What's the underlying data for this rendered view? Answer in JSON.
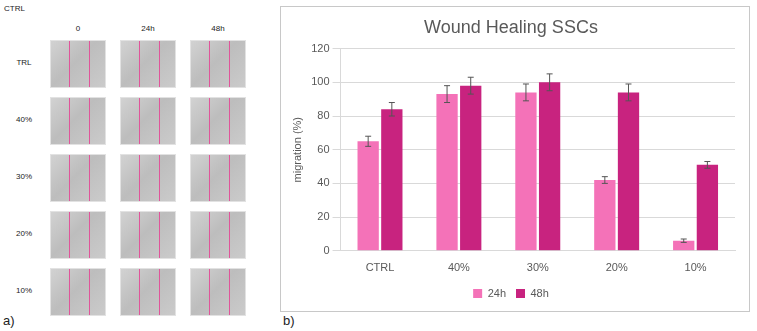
{
  "panel_a": {
    "label": "a)",
    "header": "CTRL",
    "columns": [
      "0",
      "24h",
      "48h"
    ],
    "rows": [
      "TRL",
      "40%",
      "30%",
      "20%",
      "10%"
    ]
  },
  "chart_data": {
    "type": "bar",
    "label": "b)",
    "title": "Wound Healing SSCs",
    "y_label": "migration (%)",
    "categories": [
      "CTRL",
      "40%",
      "30%",
      "20%",
      "10%"
    ],
    "series": [
      {
        "name": "24h",
        "color": "#f472b8",
        "values": [
          65,
          93,
          94,
          42,
          6
        ],
        "errors": [
          3,
          5,
          5,
          2,
          1
        ]
      },
      {
        "name": "48h",
        "color": "#c8237f",
        "values": [
          84,
          98,
          100,
          94,
          51
        ],
        "errors": [
          4,
          5,
          5,
          5,
          2
        ]
      }
    ],
    "ylim": [
      0,
      120
    ],
    "yticks": [
      0,
      20,
      40,
      60,
      80,
      100,
      120
    ],
    "grid": true,
    "legend": "bottom"
  }
}
